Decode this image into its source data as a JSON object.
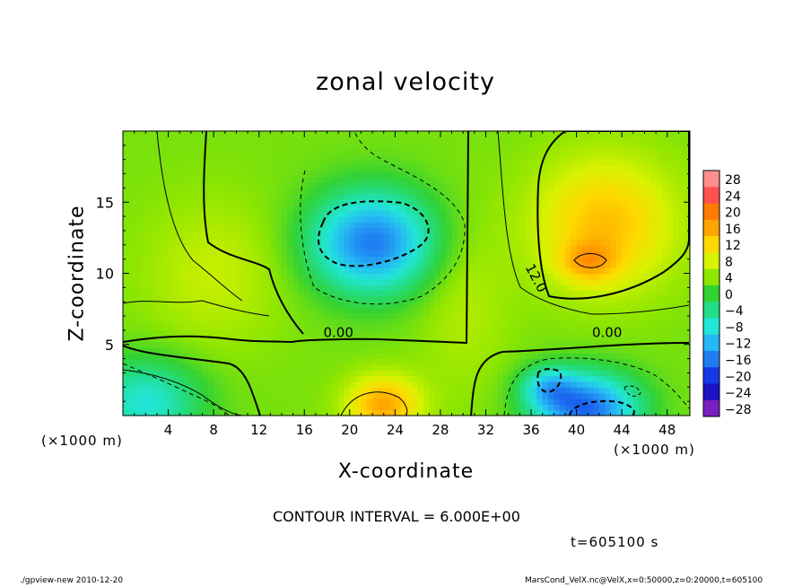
{
  "figure": {
    "title": "zonal velocity",
    "contour_interval": "CONTOUR INTERVAL = 6.000E+00",
    "time_label": "t=605100 s",
    "x_unit_left": "(×1000 m)",
    "x_unit_right": "(×1000 m)",
    "footer_left": "./gpview-new   2010-12-20",
    "footer_right": "MarsCond_VelX.nc@VelX,x=0:50000,z=0:20000,t=605100"
  },
  "chart_data": {
    "type": "heatmap",
    "title": "zonal velocity",
    "xlabel": "X-coordinate",
    "ylabel": "Z-coordinate",
    "x_unit": "×1000 m",
    "xlim": [
      0,
      50
    ],
    "ylim": [
      0,
      20
    ],
    "x_ticks": [
      4,
      8,
      12,
      16,
      20,
      24,
      28,
      32,
      36,
      40,
      44,
      48
    ],
    "y_ticks": [
      5,
      10,
      15
    ],
    "contour_interval": 6,
    "contour_labels": [
      "0.00",
      "0.00",
      "12.0"
    ],
    "colorbar": {
      "levels": [
        28,
        24,
        20,
        16,
        12,
        8,
        4,
        0,
        -4,
        -8,
        -12,
        -16,
        -20,
        -24,
        -28
      ],
      "colors": [
        "#ff8e8e",
        "#ff5050",
        "#ff7a00",
        "#ffa500",
        "#ffd800",
        "#d9f200",
        "#8fe600",
        "#33d233",
        "#22dd88",
        "#22e6d8",
        "#26b8f4",
        "#1f7df2",
        "#1838e8",
        "#1a12c4",
        "#7a1fbf"
      ]
    },
    "features": [
      {
        "kind": "minimum",
        "x": 22,
        "z": 12.2,
        "value": -13
      },
      {
        "kind": "maximum",
        "x": 41.5,
        "z": 12.5,
        "value": 16
      },
      {
        "kind": "maximum",
        "x": 41,
        "z": 10.8,
        "value": 19
      },
      {
        "kind": "maximum",
        "x": 23,
        "z": 1,
        "value": 17
      },
      {
        "kind": "minimum",
        "x": 41,
        "z": 0.5,
        "value": -15
      },
      {
        "kind": "minimum",
        "x": 38,
        "z": 2,
        "value": -12
      }
    ]
  }
}
